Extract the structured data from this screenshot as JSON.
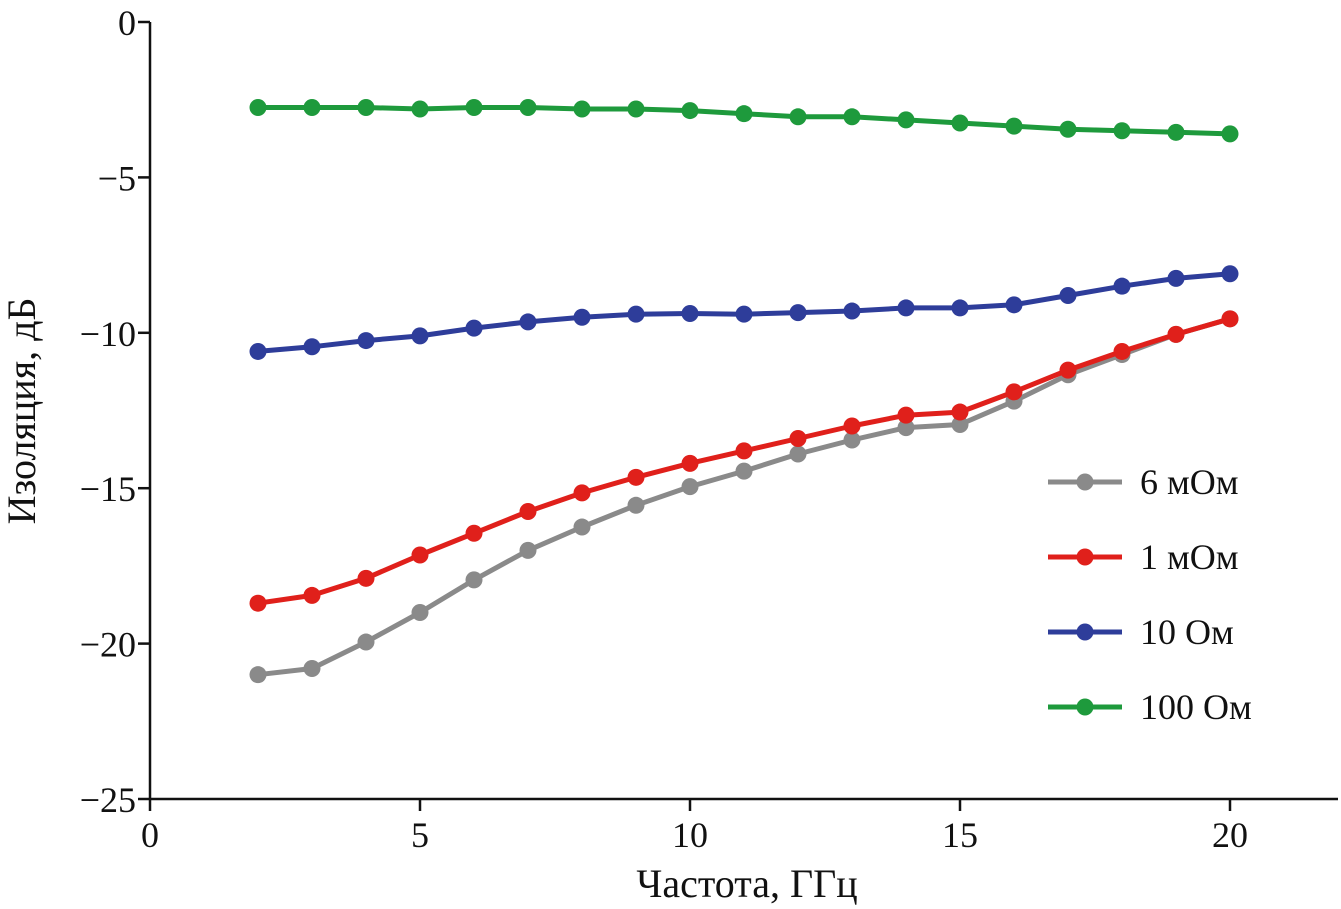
{
  "chart_data": {
    "type": "line",
    "title": "",
    "xlabel": "Частота, ГГц",
    "ylabel": "Изоляция, дБ",
    "xlim": [
      0,
      22
    ],
    "ylim": [
      -25,
      0
    ],
    "xticks": [
      0,
      5,
      10,
      15,
      20
    ],
    "xtick_labels": [
      "0",
      "5",
      "10",
      "15",
      "20"
    ],
    "yticks": [
      0,
      -5,
      -10,
      -15,
      -20,
      -25
    ],
    "ytick_labels": [
      "0",
      "−5",
      "−10",
      "−15",
      "−20",
      "−25"
    ],
    "grid": false,
    "legend_position": "right",
    "x": [
      2,
      3,
      4,
      5,
      6,
      7,
      8,
      9,
      10,
      11,
      12,
      13,
      14,
      15,
      16,
      17,
      18,
      19,
      20
    ],
    "series": [
      {
        "name": "6 мОм",
        "color": "#8a8a8a",
        "values": [
          -21.0,
          -20.8,
          -19.95,
          -19.0,
          -17.95,
          -17.0,
          -16.25,
          -15.55,
          -14.95,
          -14.45,
          -13.9,
          -13.45,
          -13.05,
          -12.95,
          -12.2,
          -11.35,
          -10.7,
          -10.05,
          -9.55
        ]
      },
      {
        "name": "1 мОм",
        "color": "#e0201b",
        "values": [
          -18.7,
          -18.45,
          -17.9,
          -17.15,
          -16.45,
          -15.75,
          -15.15,
          -14.65,
          -14.2,
          -13.8,
          -13.4,
          -13.0,
          -12.65,
          -12.55,
          -11.9,
          -11.2,
          -10.6,
          -10.05,
          -9.55
        ]
      },
      {
        "name": "10 Ом",
        "color": "#2e3d9a",
        "values": [
          -10.6,
          -10.45,
          -10.25,
          -10.1,
          -9.85,
          -9.65,
          -9.5,
          -9.4,
          -9.38,
          -9.4,
          -9.35,
          -9.3,
          -9.2,
          -9.2,
          -9.1,
          -8.8,
          -8.5,
          -8.25,
          -8.1
        ]
      },
      {
        "name": "100 Ом",
        "color": "#1e9a3c",
        "values": [
          -2.75,
          -2.75,
          -2.75,
          -2.8,
          -2.75,
          -2.75,
          -2.8,
          -2.8,
          -2.85,
          -2.95,
          -3.05,
          -3.05,
          -3.15,
          -3.25,
          -3.35,
          -3.45,
          -3.5,
          -3.55,
          -3.6
        ]
      }
    ]
  }
}
